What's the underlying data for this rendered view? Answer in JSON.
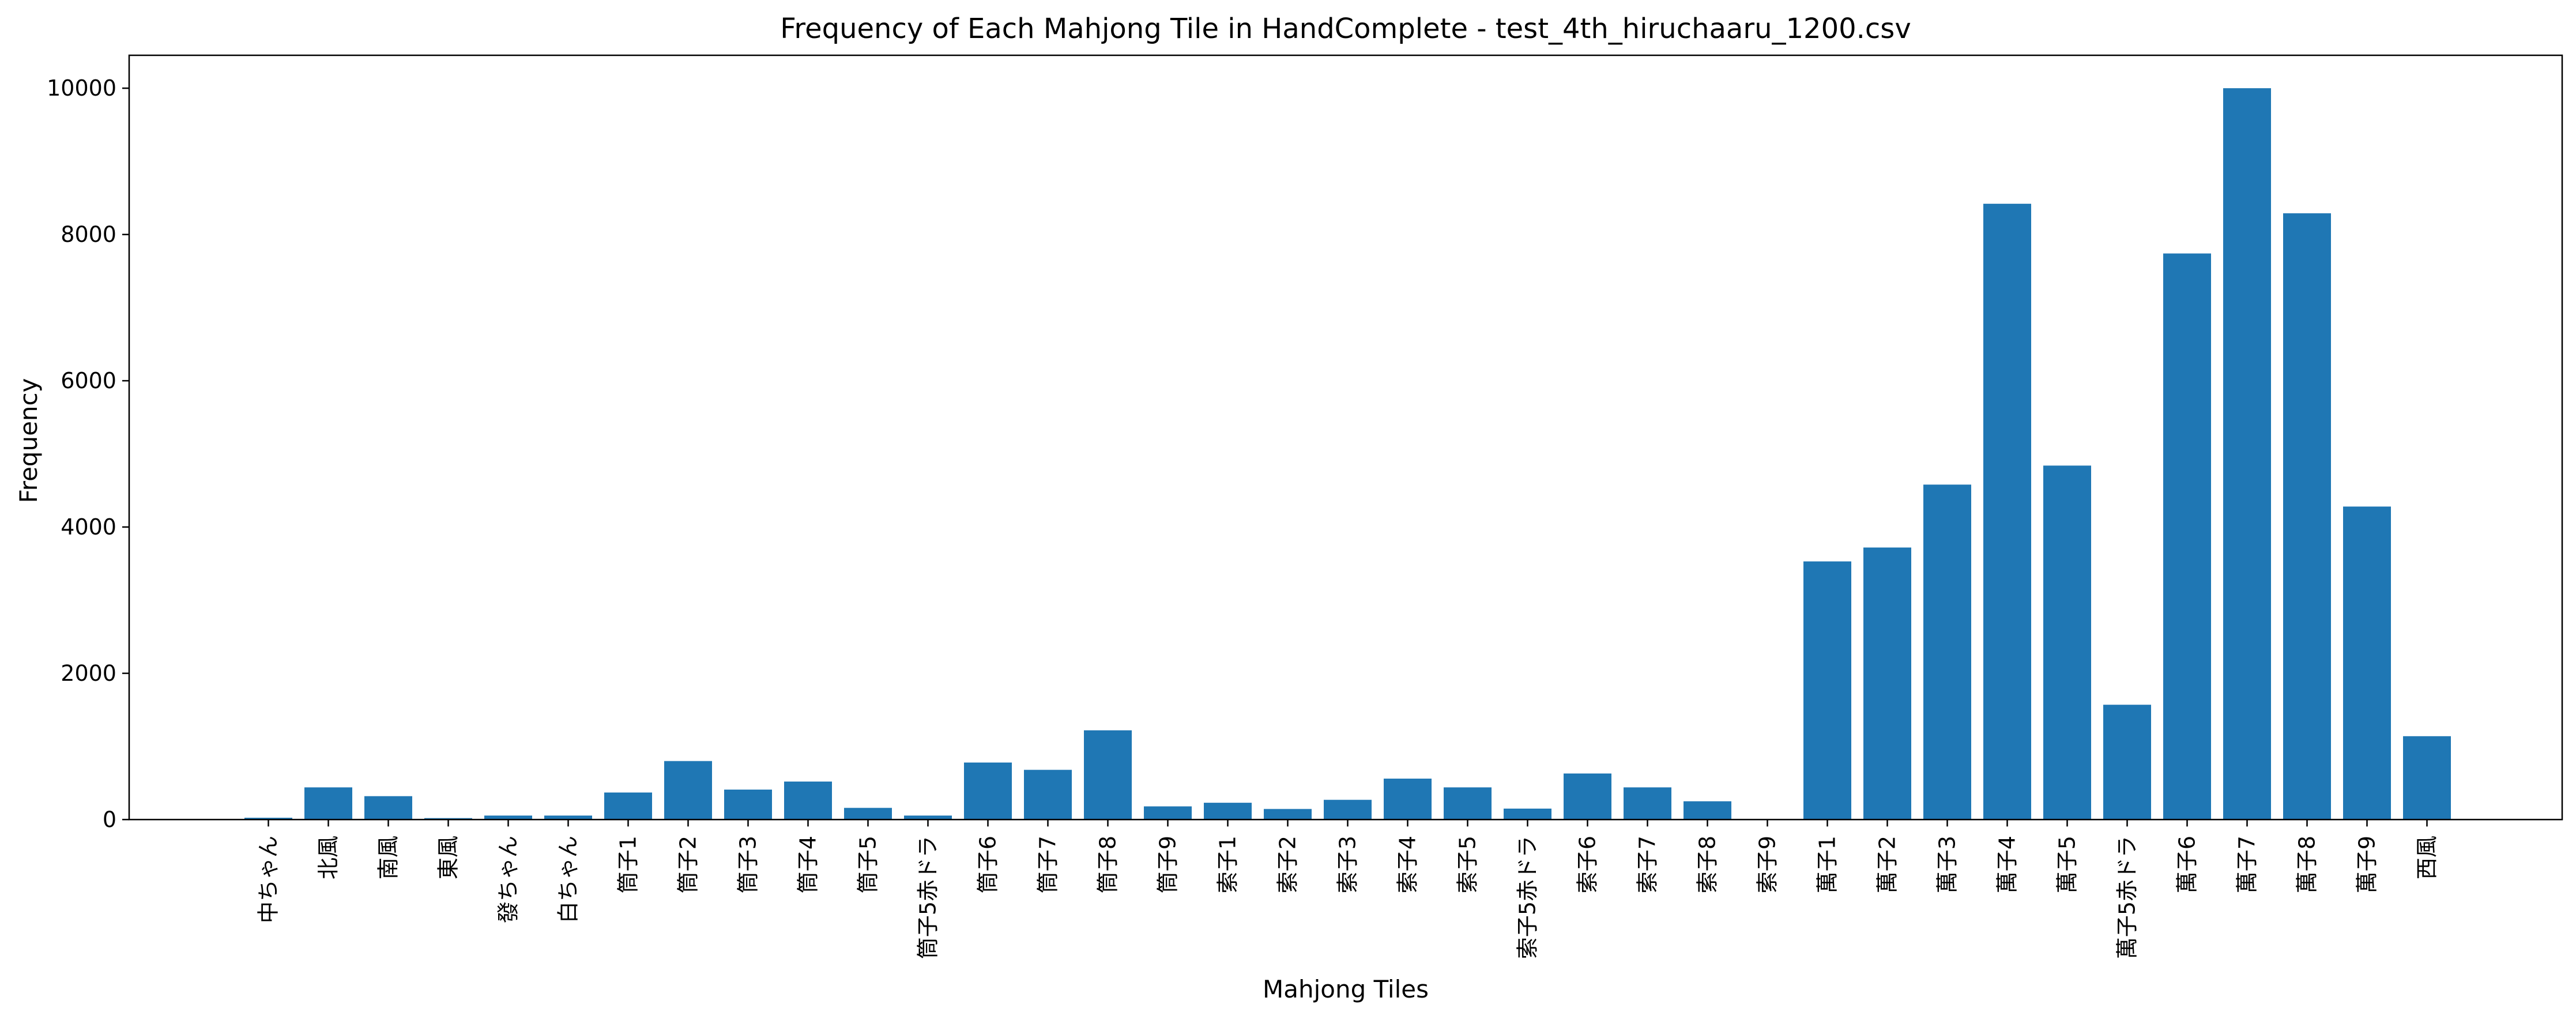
{
  "chart_data": {
    "type": "bar",
    "title": "Frequency of Each Mahjong Tile in HandComplete - test_4th_hiruchaaru_1200.csv",
    "xlabel": "Mahjong Tiles",
    "ylabel": "Frequency",
    "ylim": [
      0,
      10450
    ],
    "yticks": [
      0,
      2000,
      4000,
      6000,
      8000,
      10000
    ],
    "grid": false,
    "legend": "none",
    "bar_color": "#1f77b4",
    "categories": [
      "中ちゃん",
      "北風",
      "南風",
      "東風",
      "發ちゃん",
      "白ちゃん",
      "筒子1",
      "筒子2",
      "筒子3",
      "筒子4",
      "筒子5",
      "筒子5赤ドラ",
      "筒子6",
      "筒子7",
      "筒子8",
      "筒子9",
      "索子1",
      "索子2",
      "索子3",
      "索子4",
      "索子5",
      "索子5赤ドラ",
      "索子6",
      "索子7",
      "索子8",
      "索子9",
      "萬子1",
      "萬子2",
      "萬子3",
      "萬子4",
      "萬子5",
      "萬子5赤ドラ",
      "萬子6",
      "萬子7",
      "萬子8",
      "萬子9",
      "西風"
    ],
    "values": [
      25,
      440,
      320,
      20,
      55,
      55,
      370,
      800,
      410,
      520,
      160,
      55,
      780,
      680,
      1220,
      180,
      230,
      145,
      270,
      560,
      440,
      150,
      630,
      440,
      250,
      5,
      3530,
      3720,
      4580,
      8420,
      4840,
      1570,
      7740,
      10000,
      8290,
      4280,
      1140
    ]
  }
}
